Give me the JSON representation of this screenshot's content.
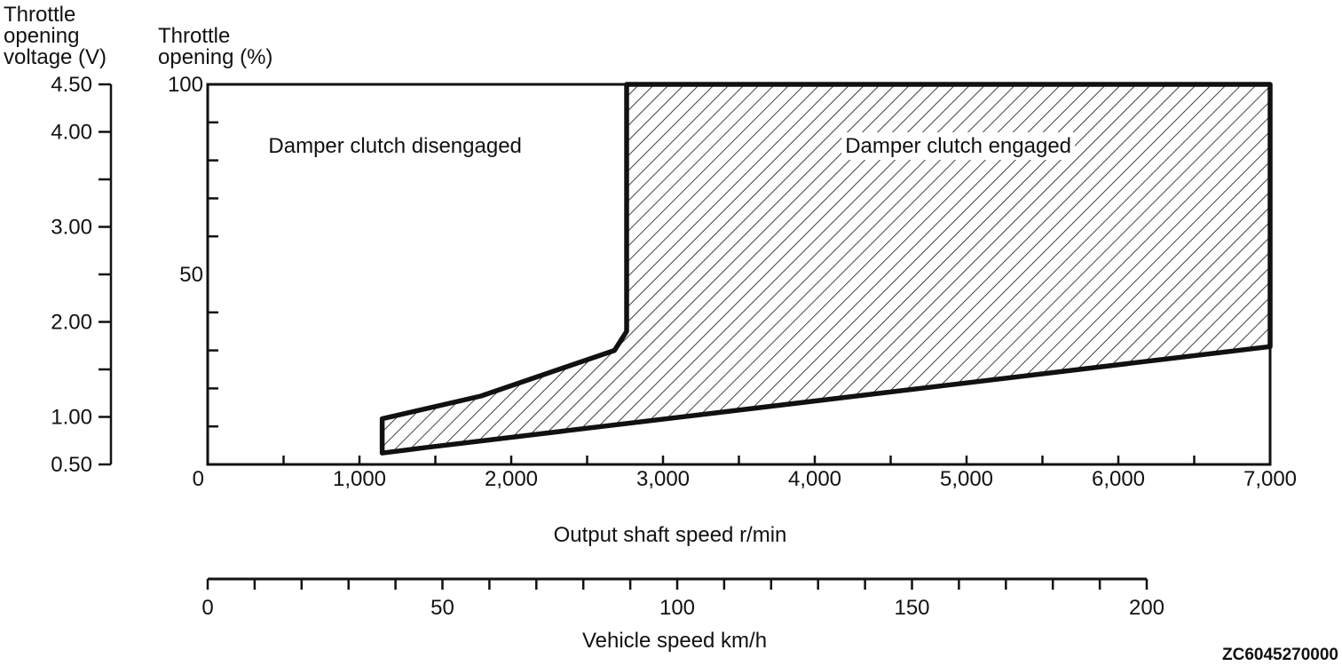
{
  "figure_id": "ZC6045270000",
  "chart_data": {
    "type": "area",
    "voltage_axis": {
      "title_lines": [
        "Throttle",
        "opening",
        "voltage (V)"
      ],
      "ticks": [
        {
          "label": "4.50",
          "value": 4.5
        },
        {
          "label": "4.00",
          "value": 4.0
        },
        {
          "label": "3.00",
          "value": 3.0
        },
        {
          "label": "2.00",
          "value": 2.0
        },
        {
          "label": "1.00",
          "value": 1.0
        },
        {
          "label": "0.50",
          "value": 0.5
        }
      ],
      "minor_ticks": [
        3.5,
        2.5,
        1.5
      ],
      "range": [
        0.5,
        4.5
      ]
    },
    "throttle_axis": {
      "title_lines": [
        "Throttle",
        "opening (%)"
      ],
      "ticks": [
        {
          "label": "100",
          "value": 100
        },
        {
          "label": "50",
          "value": 50
        }
      ],
      "minor_ticks": [
        10,
        20,
        30,
        40,
        60,
        70,
        80,
        90
      ],
      "range": [
        0,
        100
      ]
    },
    "x_axis": {
      "title": "Output shaft speed r/min",
      "ticks": [
        {
          "label": "0",
          "value": 0
        },
        {
          "label": "1,000",
          "value": 1000
        },
        {
          "label": "2,000",
          "value": 2000
        },
        {
          "label": "3,000",
          "value": 3000
        },
        {
          "label": "4,000",
          "value": 4000
        },
        {
          "label": "5,000",
          "value": 5000
        },
        {
          "label": "6,000",
          "value": 6000
        },
        {
          "label": "7,000",
          "value": 7000
        }
      ],
      "minor_ticks": [
        500,
        1500,
        2500,
        3500,
        4500,
        5500,
        6500
      ],
      "range": [
        0,
        7000
      ]
    },
    "vehicle_axis": {
      "title": "Vehicle speed km/h",
      "ticks": [
        {
          "label": "0",
          "value": 0
        },
        {
          "label": "50",
          "value": 50
        },
        {
          "label": "100",
          "value": 100
        },
        {
          "label": "150",
          "value": 150
        },
        {
          "label": "200",
          "value": 200
        }
      ],
      "minor_step": 10,
      "range": [
        0,
        200
      ]
    },
    "regions": [
      {
        "label": "Damper clutch disengaged",
        "rpm": 400,
        "throttle": 82
      },
      {
        "label": "Damper clutch engaged",
        "rpm": 4200,
        "throttle": 82
      }
    ],
    "engaged_boundary": [
      {
        "rpm": 1150,
        "throttle": 3
      },
      {
        "rpm": 1450,
        "throttle": 4.5
      },
      {
        "rpm": 7000,
        "throttle": 31
      },
      {
        "rpm": 7000,
        "throttle": 100
      },
      {
        "rpm": 2760,
        "throttle": 100
      },
      {
        "rpm": 2760,
        "throttle": 35
      },
      {
        "rpm": 2680,
        "throttle": 30
      },
      {
        "rpm": 1800,
        "throttle": 18
      },
      {
        "rpm": 1150,
        "throttle": 12
      }
    ]
  }
}
